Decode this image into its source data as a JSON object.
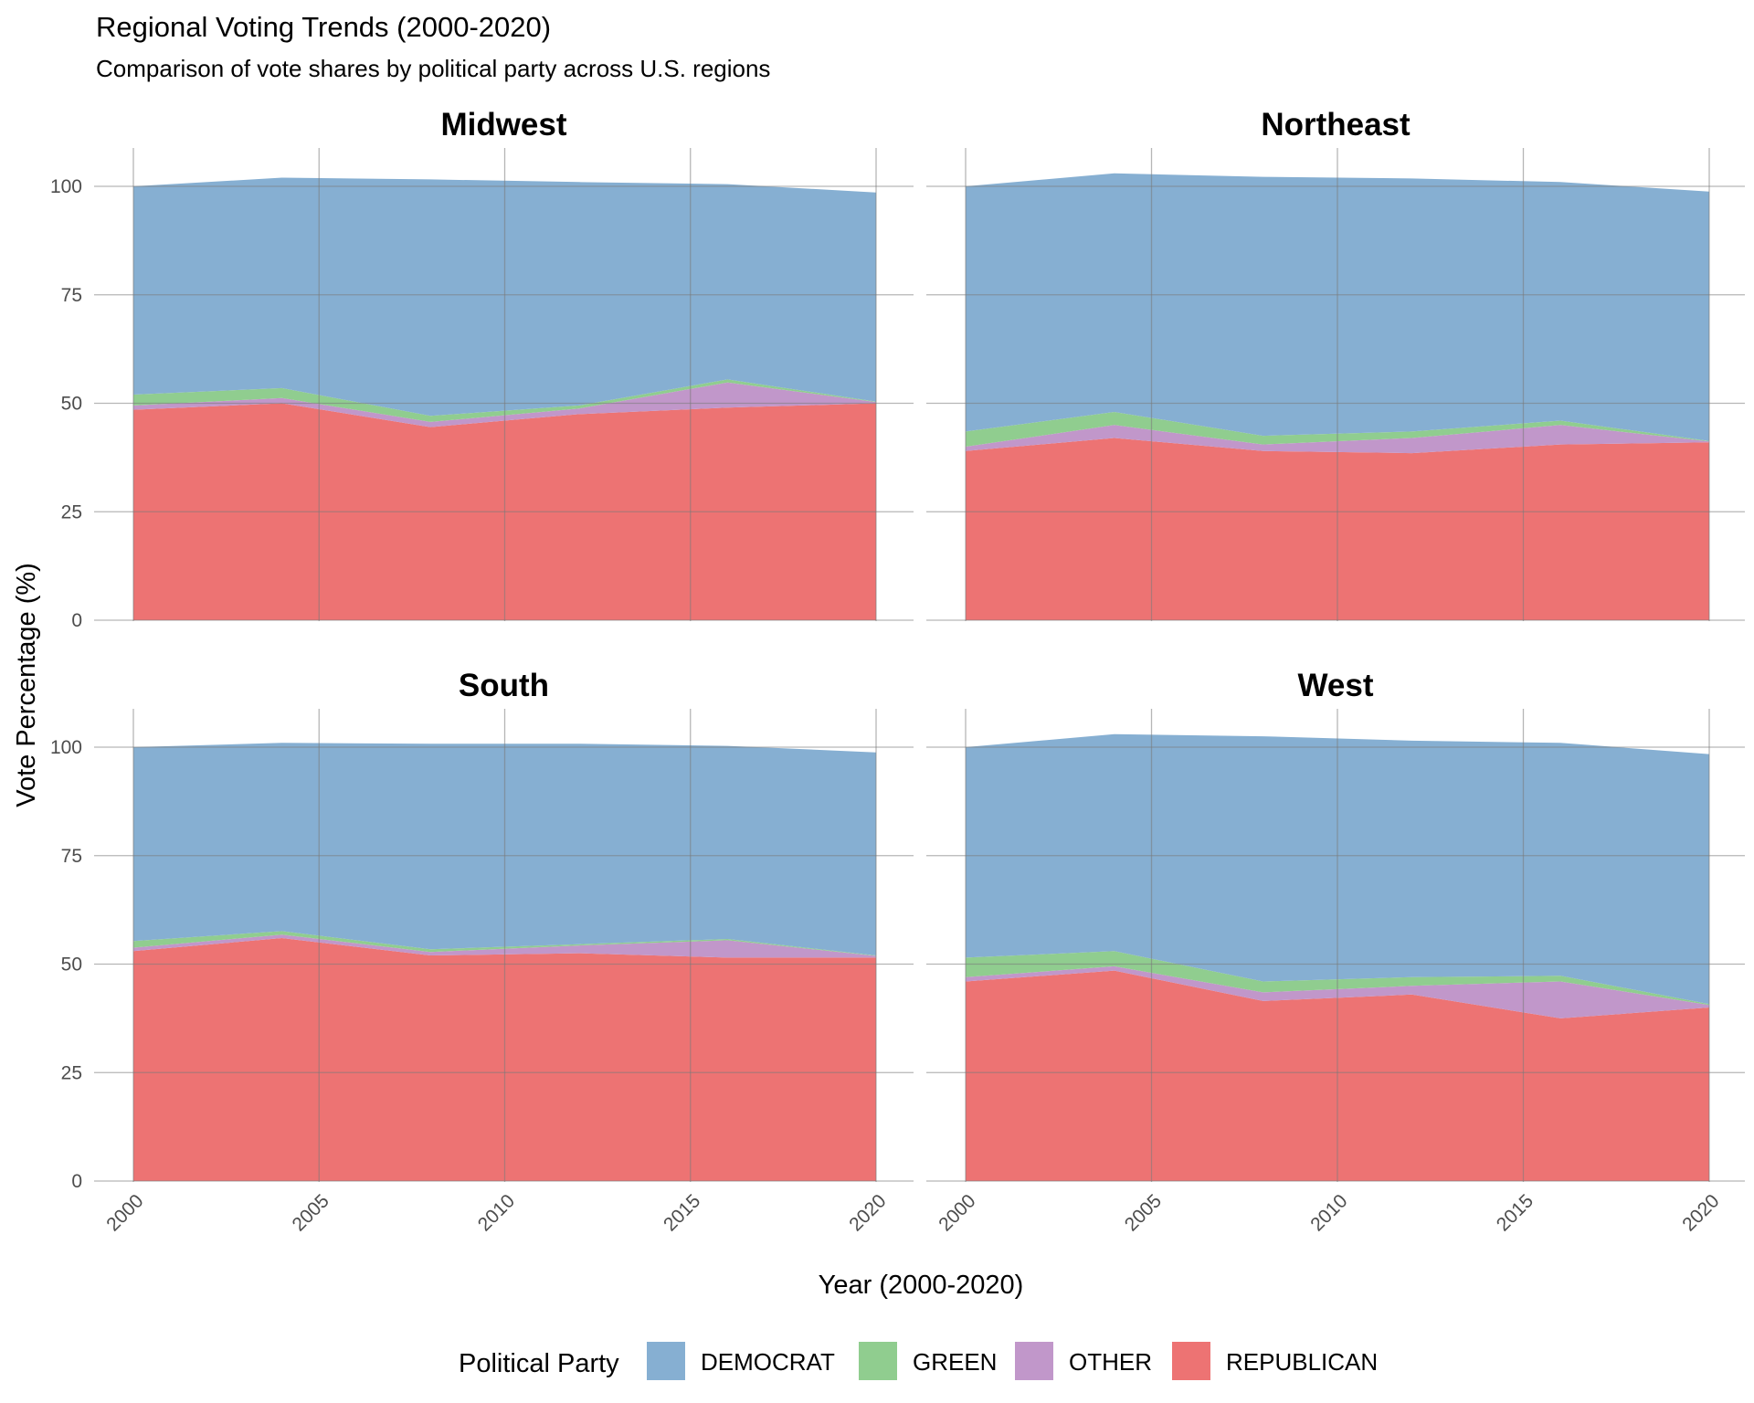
{
  "chart_data": {
    "type": "area",
    "stacked": true,
    "title": "Regional Voting Trends (2000-2020)",
    "subtitle": "Comparison of vote shares by political party across U.S. regions",
    "xlabel": "Year (2000-2020)",
    "ylabel": "Vote Percentage (%)",
    "xlim": [
      2000,
      2020
    ],
    "ylim": [
      0,
      105
    ],
    "x_ticks": [
      "2000",
      "2005",
      "2010",
      "2015",
      "2020"
    ],
    "y_ticks": [
      "0",
      "25",
      "50",
      "75",
      "100"
    ],
    "grid": true,
    "legend": {
      "title": "Political Party",
      "position": "bottom",
      "entries": [
        "DEMOCRAT",
        "GREEN",
        "OTHER",
        "REPUBLICAN"
      ]
    },
    "colors": {
      "DEMOCRAT": "#86afd2",
      "GREEN": "#90cd8f",
      "OTHER": "#c197ca",
      "REPUBLICAN": "#ed7373"
    },
    "x": [
      2000,
      2004,
      2008,
      2012,
      2016,
      2020
    ],
    "panels": [
      {
        "name": "Midwest",
        "series": [
          {
            "name": "REPUBLICAN",
            "values": [
              48.5,
              50.0,
              44.5,
              47.5,
              49.0,
              50.0
            ]
          },
          {
            "name": "OTHER",
            "values": [
              1.0,
              1.2,
              1.2,
              1.3,
              5.8,
              0.3
            ]
          },
          {
            "name": "GREEN",
            "values": [
              2.5,
              2.3,
              1.4,
              0.7,
              0.7,
              0.1
            ]
          },
          {
            "name": "DEMOCRAT",
            "values": [
              48.0,
              48.5,
              54.5,
              51.5,
              45.0,
              48.2
            ]
          }
        ]
      },
      {
        "name": "Northeast",
        "series": [
          {
            "name": "REPUBLICAN",
            "values": [
              39.0,
              42.0,
              39.0,
              38.5,
              40.5,
              41.0
            ]
          },
          {
            "name": "OTHER",
            "values": [
              1.0,
              3.0,
              1.5,
              3.5,
              4.5,
              0.2
            ]
          },
          {
            "name": "GREEN",
            "values": [
              3.5,
              3.0,
              2.0,
              1.5,
              1.0,
              0.1
            ]
          },
          {
            "name": "DEMOCRAT",
            "values": [
              56.5,
              55.0,
              59.7,
              58.3,
              55.0,
              57.5
            ]
          }
        ]
      },
      {
        "name": "South",
        "series": [
          {
            "name": "REPUBLICAN",
            "values": [
              53.0,
              56.0,
              52.0,
              52.5,
              51.5,
              51.5
            ]
          },
          {
            "name": "OTHER",
            "values": [
              0.8,
              0.8,
              0.8,
              1.8,
              4.0,
              0.4
            ]
          },
          {
            "name": "GREEN",
            "values": [
              1.5,
              0.8,
              0.6,
              0.3,
              0.3,
              0.1
            ]
          },
          {
            "name": "DEMOCRAT",
            "values": [
              44.7,
              43.4,
              47.4,
              46.2,
              44.5,
              46.8
            ]
          }
        ]
      },
      {
        "name": "West",
        "series": [
          {
            "name": "REPUBLICAN",
            "values": [
              46.0,
              48.5,
              41.5,
              43.0,
              37.5,
              40.0
            ]
          },
          {
            "name": "OTHER",
            "values": [
              1.0,
              1.0,
              2.0,
              2.0,
              8.5,
              0.6
            ]
          },
          {
            "name": "GREEN",
            "values": [
              4.5,
              3.5,
              2.5,
              2.0,
              1.3,
              0.2
            ]
          },
          {
            "name": "DEMOCRAT",
            "values": [
              48.5,
              50.0,
              56.5,
              54.5,
              53.7,
              57.6
            ]
          }
        ]
      }
    ]
  }
}
